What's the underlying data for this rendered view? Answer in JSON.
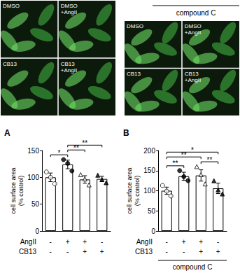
{
  "image_panels": [
    {
      "labels": [
        "DMSO",
        "DMSO\n+AngII",
        "CB13",
        "CB13\n+AngII"
      ]
    },
    {
      "title": "compound C",
      "labels": [
        "DMSO",
        "DMSO\n+AngII",
        "CB13",
        "CB13\n+AngII"
      ]
    }
  ],
  "chart_data": [
    {
      "type": "bar",
      "panel_label": "A",
      "y_label": "cell surface area\n(% control)",
      "categories": [
        null,
        null,
        null,
        null
      ],
      "values": [
        100,
        124,
        96,
        97
      ],
      "errors": [
        8,
        8,
        7,
        5
      ],
      "points": [
        [
          110,
          100,
          88
        ],
        [
          133,
          126,
          112
        ],
        [
          105,
          97,
          86
        ],
        [
          104,
          96,
          90
        ]
      ],
      "point_markers": [
        "circle_open",
        "circle_filled",
        "triangle_open",
        "triangle_filled"
      ],
      "conditions": [
        {
          "label": "AngII",
          "values": [
            "-",
            "+",
            "+",
            "-"
          ]
        },
        {
          "label": "CB13",
          "values": [
            "-",
            "-",
            "+",
            "+"
          ]
        }
      ],
      "significance": [
        {
          "from": 0,
          "to": 1,
          "label": "*"
        },
        {
          "from": 1,
          "to": 2,
          "label": "**"
        },
        {
          "from": 1,
          "to": 3,
          "label": "**"
        }
      ],
      "ylim": [
        0,
        150
      ],
      "yticks": [
        0,
        50,
        100,
        150
      ],
      "color": "#ffffff",
      "grid": false
    },
    {
      "type": "bar",
      "panel_label": "B",
      "y_label": "cell surface area\n(% control)",
      "categories": [
        null,
        null,
        null,
        null
      ],
      "values": [
        100,
        136,
        138,
        106
      ],
      "errors": [
        9,
        10,
        14,
        13
      ],
      "points": [
        [
          113,
          99,
          87
        ],
        [
          150,
          135,
          125
        ],
        [
          160,
          140,
          117
        ],
        [
          125,
          102,
          92
        ]
      ],
      "point_markers": [
        "circle_open",
        "circle_filled",
        "triangle_open",
        "triangle_filled"
      ],
      "conditions": [
        {
          "label": "AngII",
          "values": [
            "-",
            "+",
            "+",
            "-"
          ]
        },
        {
          "label": "CB13",
          "values": [
            "-",
            "-",
            "+",
            "+"
          ]
        }
      ],
      "significance": [
        {
          "from": 0,
          "to": 1,
          "label": "**"
        },
        {
          "from": 2,
          "to": 3,
          "label": "**"
        },
        {
          "from": 0,
          "to": 2,
          "label": "**"
        },
        {
          "from": 0,
          "to": 3,
          "label": "*"
        }
      ],
      "group_label": "compound C",
      "ylim": [
        0,
        200
      ],
      "yticks": [
        0,
        50,
        100,
        150,
        200
      ],
      "color": "#ffffff",
      "grid": false
    }
  ]
}
